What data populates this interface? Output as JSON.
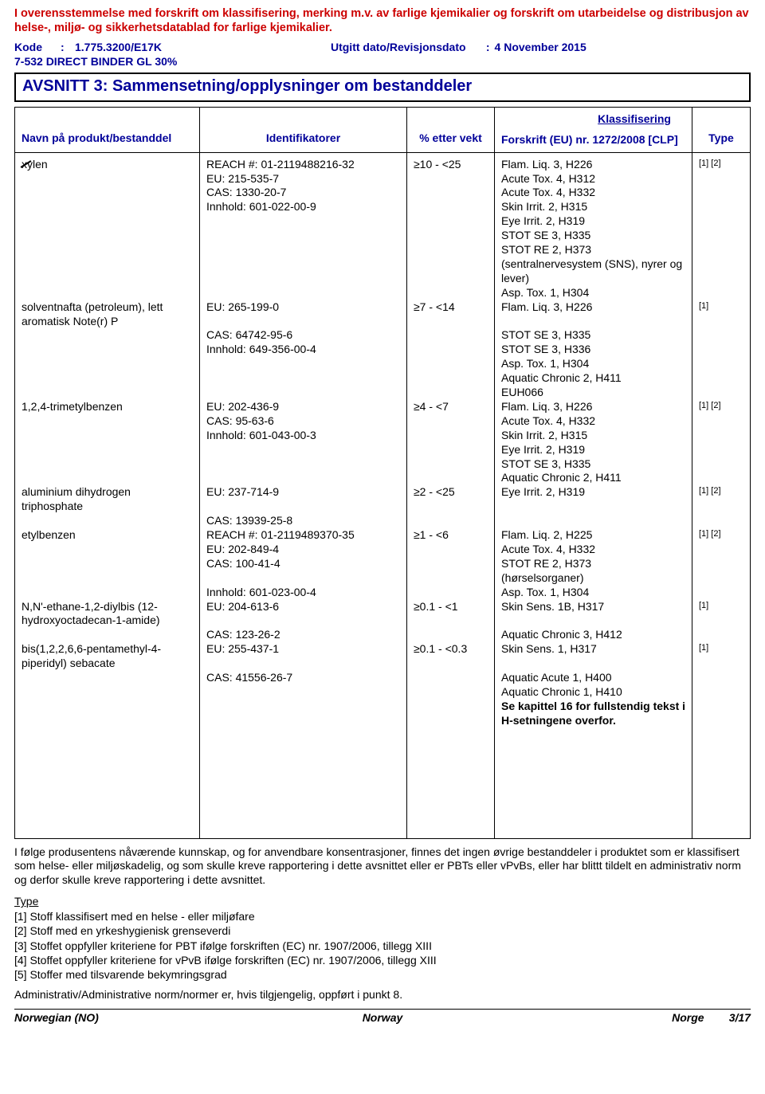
{
  "compliance_text": "I overensstemmelse med forskrift om klassifisering, merking m.v. av farlige kjemikalier og forskrift om utarbeidelse og distribusjon av helse-, miljø- og sikkerhetsdatablad for farlige kjemikalier.",
  "meta": {
    "code_label": "Kode",
    "code_value": "1.775.3200/E17K",
    "issued_label": "Utgitt dato/Revisjonsdato",
    "issued_value": "4 November 2015",
    "product_line": "7-532 DIRECT BINDER GL 30%"
  },
  "section": {
    "title": "AVSNITT 3: Sammensetning/opplysninger om bestanddeler"
  },
  "table": {
    "headers": {
      "name": "Navn på produkt/bestanddel",
      "id": "Identifikatorer",
      "pct": "% etter vekt",
      "class_top": "Klassifisering",
      "class_sub": "Forskrift (EU) nr. 1272/2008 [CLP]",
      "type": "Type"
    },
    "rows": [
      {
        "name": "xylen",
        "name_strike": true,
        "ids": [
          "REACH #: 01-2119488216-32",
          "EU: 215-535-7",
          "CAS: 1330-20-7",
          "Innhold: 601-022-00-9"
        ],
        "pct": "≥10 - <25",
        "class": [
          "Flam. Liq. 3, H226",
          "Acute Tox. 4, H312",
          "Acute Tox. 4, H332",
          "Skin Irrit. 2, H315",
          "Eye Irrit. 2, H319",
          "STOT SE 3, H335",
          "STOT RE 2, H373",
          "(sentralnervesystem (SNS), nyrer og lever)",
          "Asp. Tox. 1, H304"
        ],
        "type": "[1] [2]"
      },
      {
        "name": "solventnafta (petroleum), lett aromatisk Note(r) P",
        "ids": [
          "EU: 265-199-0",
          "",
          "CAS: 64742-95-6",
          "Innhold: 649-356-00-4"
        ],
        "pct": "≥7 - <14",
        "class": [
          "Flam. Liq. 3, H226",
          "",
          "STOT SE 3, H335",
          "STOT SE 3, H336",
          "Asp. Tox. 1, H304",
          "Aquatic Chronic 2, H411",
          "EUH066"
        ],
        "type": "[1]"
      },
      {
        "name": "1,2,4-trimetylbenzen",
        "ids": [
          "EU: 202-436-9",
          "CAS: 95-63-6",
          "Innhold: 601-043-00-3"
        ],
        "pct": "≥4 - <7",
        "class": [
          "Flam. Liq. 3, H226",
          "Acute Tox. 4, H332",
          "Skin Irrit. 2, H315",
          "Eye Irrit. 2, H319",
          "STOT SE 3, H335",
          "Aquatic Chronic 2, H411"
        ],
        "type": "[1] [2]"
      },
      {
        "name": "aluminium dihydrogen triphosphate",
        "ids": [
          "EU: 237-714-9",
          "",
          "CAS: 13939-25-8"
        ],
        "pct": "≥2 - <25",
        "class": [
          "Eye Irrit. 2, H319"
        ],
        "type": "[1] [2]"
      },
      {
        "name": "etylbenzen",
        "ids": [
          "REACH #: 01-2119489370-35",
          "EU: 202-849-4",
          "CAS: 100-41-4",
          "",
          "Innhold: 601-023-00-4"
        ],
        "pct": "≥1 - <6",
        "class": [
          "Flam. Liq. 2, H225",
          "Acute Tox. 4, H332",
          "STOT RE 2, H373",
          "(hørselsorganer)",
          "Asp. Tox. 1, H304"
        ],
        "type": "[1] [2]"
      },
      {
        "name": "N,N'-ethane-1,2-diylbis (12-hydroxyoctadecan-1-amide)",
        "ids": [
          "EU: 204-613-6",
          "",
          "CAS: 123-26-2"
        ],
        "pct": "≥0.1 - <1",
        "class": [
          "Skin Sens. 1B, H317",
          "",
          "Aquatic Chronic 3, H412"
        ],
        "type": "[1]"
      },
      {
        "name": "bis(1,2,2,6,6-pentamethyl-4-piperidyl) sebacate",
        "ids": [
          "EU: 255-437-1",
          "",
          "CAS: 41556-26-7"
        ],
        "pct": "≥0.1 - <0.3",
        "class": [
          "Skin Sens. 1, H317",
          "",
          "Aquatic Acute 1, H400",
          "Aquatic Chronic 1, H410"
        ],
        "type": "[1]"
      }
    ],
    "see_ch16": "Se kapittel 16 for fullstendig tekst i H-setningene overfor."
  },
  "body_para": "I følge produsentens nåværende kunnskap, og for anvendbare konsentrasjoner, finnes det ingen øvrige bestanddeler i produktet som er klassifisert som helse- eller miljøskadelig, og som skulle kreve rapportering i dette avsnittet eller er PBTs eller vPvBs, eller har blittt tildelt en administrativ norm og derfor skulle kreve rapportering i dette avsnittet.",
  "type_heading": "Type",
  "type_items": [
    "[1] Stoff klassifisert med en helse - eller miljøfare",
    "[2] Stoff med en yrkeshygienisk grenseverdi",
    "[3] Stoffet oppfyller kriteriene for PBT ifølge forskriften (EC) nr. 1907/2006, tillegg XIII",
    "[4] Stoffet oppfyller kriteriene for vPvB ifølge forskriften (EC) nr. 1907/2006, tillegg XIII",
    "[5] Stoffer med tilsvarende bekymringsgrad"
  ],
  "admin_note": "Administrativ/Administrative norm/normer er, hvis tilgjengelig, oppført i punkt 8.",
  "footer": {
    "left": "Norwegian (NO)",
    "mid": "Norway",
    "right_country": "Norge",
    "page_no": "3/17"
  }
}
